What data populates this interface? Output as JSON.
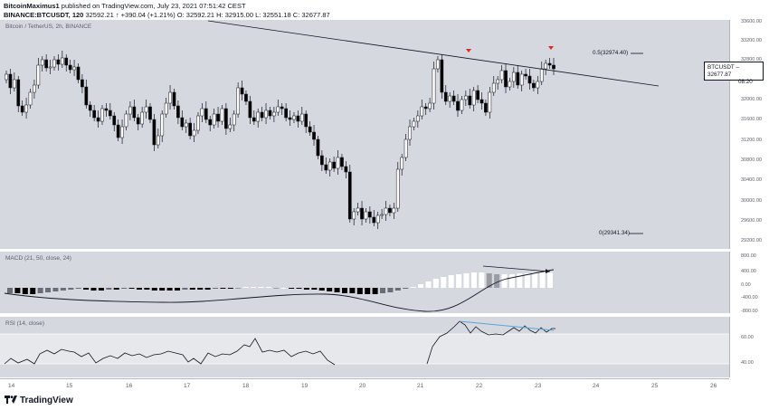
{
  "header": {
    "author": "BitcoinMaximus1",
    "published": "published on TradingView.com, July 23, 2021 07:51:42 CEST",
    "symbol_line": "BINANCE:BTCUSDT, 120",
    "ohlc": "32592.21 ↑ +390.04 (+1.21%) O: 32592.21 H: 32915.00 L: 32551.18 C: 32677.87"
  },
  "price_pane": {
    "label": "Bitcoin / TetherUS, 2h, BINANCE",
    "axis_ticks": [
      "33600.00",
      "33200.00",
      "32800.00",
      "32400.00",
      "32000.00",
      "31600.00",
      "31200.00",
      "30800.00",
      "30400.00",
      "30000.00",
      "29600.00",
      "29200.00"
    ],
    "fib_top": "0.5(32974.40)",
    "fib_bottom": "0(29341.34)",
    "price_tag_symbol": "BTCUSDT",
    "price_tag_value": "32677.87",
    "price_tag_timer": "08:20"
  },
  "macd_pane": {
    "label": "MACD (21, 50, close, 24)",
    "axis_ticks": [
      "800.00",
      "400.00",
      "0.00",
      "-400.00",
      "-800.00"
    ]
  },
  "rsi_pane": {
    "label": "RSI (14, close)",
    "axis_ticks": [
      "60.00",
      "40.00"
    ]
  },
  "x_axis": {
    "ticks": [
      "14",
      "15",
      "16",
      "17",
      "18",
      "19",
      "20",
      "21",
      "22",
      "23",
      "24",
      "25",
      "26"
    ]
  },
  "footer": {
    "logo": "TradingView"
  },
  "colors": {
    "pane_bg": "#d5d8de",
    "up_candle": "#ffffff",
    "down_candle": "#000000",
    "signal_arrow": "#e52520",
    "divergence_line": "#5aa6d6"
  }
}
